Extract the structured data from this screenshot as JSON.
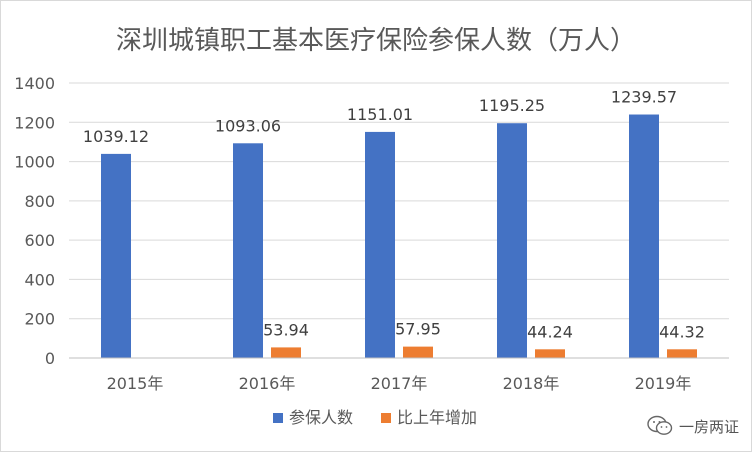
{
  "chart_data": {
    "type": "bar",
    "title": "深圳城镇职工基本医疗保险参保人数（万人）",
    "categories": [
      "2015年",
      "2016年",
      "2017年",
      "2018年",
      "2019年"
    ],
    "series": [
      {
        "name": "参保人数",
        "color": "#4472c4",
        "values": [
          1039.12,
          1093.06,
          1151.01,
          1195.25,
          1239.57
        ],
        "labels": [
          "1039.12",
          "1093.06",
          "1151.01",
          "1195.25",
          "1239.57"
        ]
      },
      {
        "name": "比上年增加",
        "color": "#ed7d31",
        "values": [
          null,
          53.94,
          57.95,
          44.24,
          44.32
        ],
        "labels": [
          "",
          "53.94",
          "57.95",
          "44.24",
          "44.32"
        ]
      }
    ],
    "ylim": [
      0,
      1400
    ],
    "yticks": [
      "0",
      "200",
      "400",
      "600",
      "800",
      "1000",
      "1200",
      "1400"
    ],
    "grid": true,
    "legend_position": "bottom"
  },
  "watermark": {
    "text": "一房两证",
    "icon": "wechat-icon"
  }
}
